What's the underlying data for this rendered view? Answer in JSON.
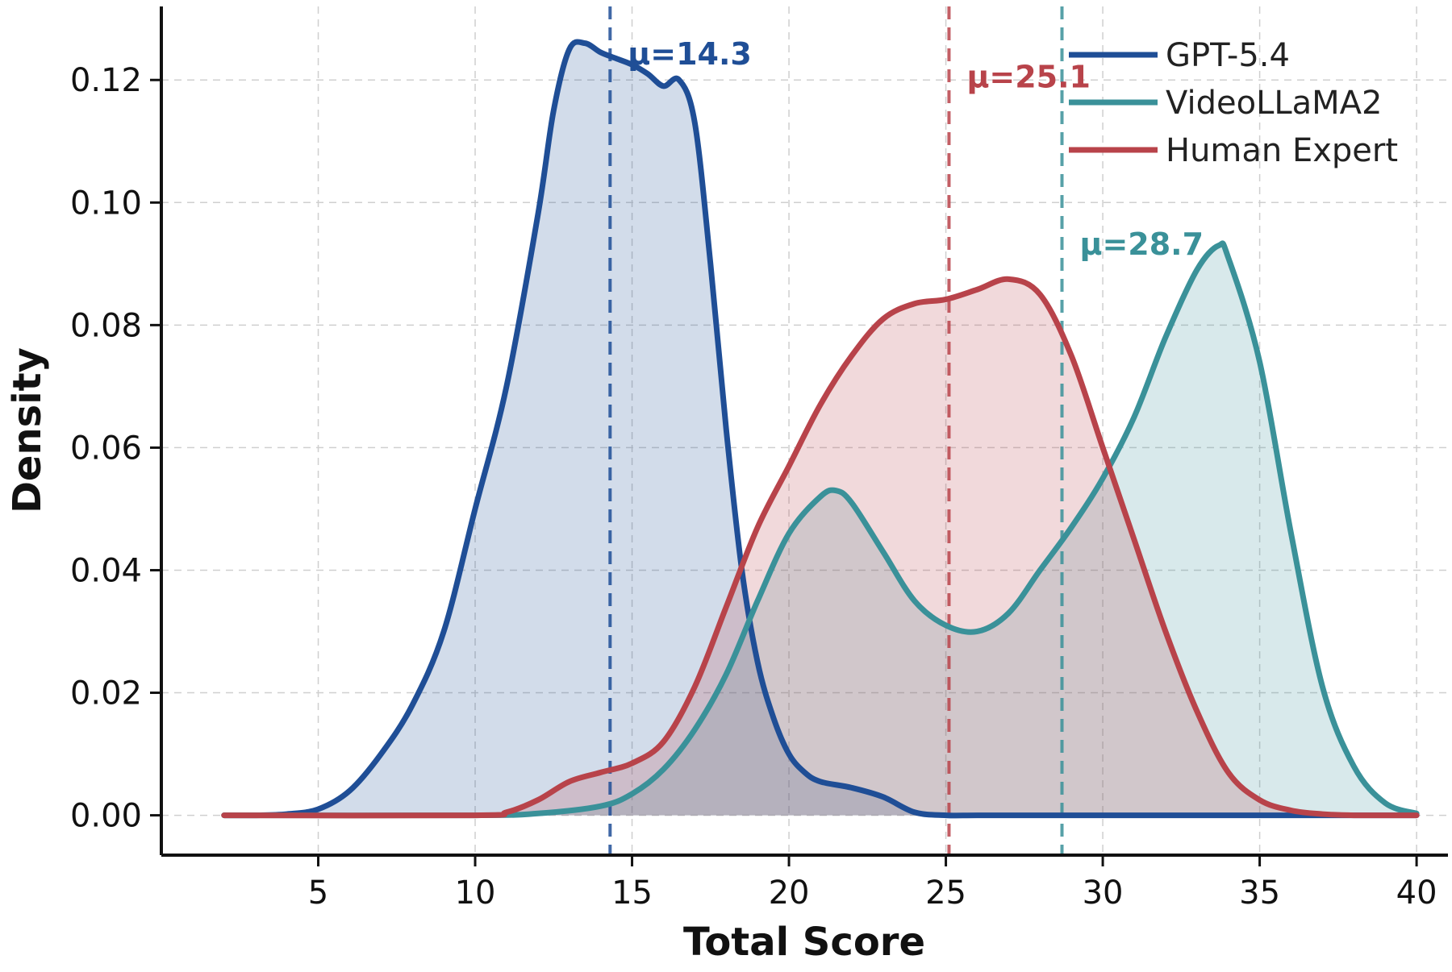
{
  "chart_data": {
    "type": "area",
    "title": "",
    "xlabel": "Total Score",
    "ylabel": "Density",
    "xlim": [
      0,
      41
    ],
    "ylim": [
      -0.0065,
      0.132
    ],
    "x_ticks": [
      5,
      10,
      15,
      20,
      25,
      30,
      35,
      40
    ],
    "y_ticks": [
      0.0,
      0.02,
      0.04,
      0.06,
      0.08,
      0.1,
      0.12
    ],
    "x_tick_labels": [
      "5",
      "10",
      "15",
      "20",
      "25",
      "30",
      "35",
      "40"
    ],
    "y_tick_labels": [
      "0.00",
      "0.02",
      "0.04",
      "0.06",
      "0.08",
      "0.10",
      "0.12"
    ],
    "grid": true,
    "legend_position": "top-right",
    "series": [
      {
        "name": "GPT-5.4",
        "color": "#1f4e96",
        "mean": 14.3,
        "mean_label": "μ=14.3",
        "x": [
          2,
          3,
          4,
          5,
          6,
          7,
          8,
          9,
          10,
          11,
          12,
          12.5,
          13,
          13.5,
          14,
          14.5,
          15,
          15.5,
          16,
          16.5,
          17,
          17.5,
          18,
          18.5,
          19,
          19.5,
          20,
          20.5,
          21,
          22,
          23,
          24,
          25,
          26,
          28,
          30,
          32,
          34,
          36,
          38,
          40
        ],
        "values": [
          0,
          0,
          0.0002,
          0.001,
          0.004,
          0.01,
          0.018,
          0.03,
          0.05,
          0.07,
          0.098,
          0.115,
          0.125,
          0.126,
          0.1245,
          0.1235,
          0.1225,
          0.121,
          0.119,
          0.12,
          0.113,
          0.09,
          0.063,
          0.04,
          0.025,
          0.016,
          0.01,
          0.007,
          0.0055,
          0.0045,
          0.003,
          0.0005,
          0,
          0,
          0,
          0,
          0,
          0,
          0,
          0,
          0
        ]
      },
      {
        "name": "VideoLLaMA2",
        "color": "#3a9199",
        "mean": 28.7,
        "mean_label": "μ=28.7",
        "x": [
          2,
          10,
          12,
          14,
          15,
          16,
          17,
          18,
          19,
          20,
          21,
          21.5,
          22,
          23,
          24,
          25,
          26,
          27,
          28,
          29,
          30,
          31,
          32,
          33,
          33.7,
          34,
          35,
          36,
          37,
          38,
          39,
          40
        ],
        "values": [
          0,
          0,
          0.0003,
          0.0015,
          0.0035,
          0.0075,
          0.014,
          0.023,
          0.035,
          0.046,
          0.052,
          0.053,
          0.051,
          0.043,
          0.035,
          0.031,
          0.03,
          0.033,
          0.04,
          0.047,
          0.055,
          0.065,
          0.078,
          0.089,
          0.093,
          0.091,
          0.074,
          0.046,
          0.021,
          0.008,
          0.002,
          0.0003
        ]
      },
      {
        "name": "Human Expert",
        "color": "#b8434a",
        "mean": 25.1,
        "mean_label": "μ=25.1",
        "x": [
          2,
          10,
          11,
          12,
          13,
          14,
          15,
          16,
          17,
          18,
          19,
          20,
          21,
          22,
          23,
          24,
          25,
          26,
          27,
          28,
          29,
          30,
          31,
          32,
          33,
          34,
          35,
          36,
          37,
          38,
          40
        ],
        "values": [
          0,
          0,
          0.0005,
          0.0025,
          0.0055,
          0.007,
          0.0085,
          0.012,
          0.021,
          0.034,
          0.047,
          0.057,
          0.067,
          0.075,
          0.081,
          0.0835,
          0.0842,
          0.0858,
          0.0875,
          0.085,
          0.075,
          0.06,
          0.045,
          0.03,
          0.017,
          0.007,
          0.0025,
          0.0008,
          0.0002,
          0,
          0
        ]
      }
    ]
  }
}
